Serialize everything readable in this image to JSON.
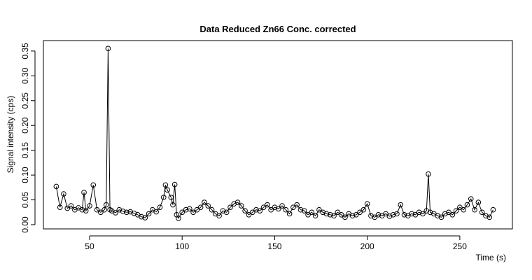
{
  "chart_data": {
    "type": "scatter",
    "title": "Data Reduced Zn66 Conc. corrected",
    "x_label": "Time (s)",
    "y_label": "Signal intensity (cps)",
    "connect": true,
    "color": "#000000",
    "xlim": [
      25.05,
      278.4
    ],
    "ylim": [
      -0.0085,
      0.371
    ],
    "xticks": [
      50,
      100,
      150,
      200,
      250
    ],
    "yticks": [
      {
        "value": 0,
        "label": "0.00"
      },
      0.05,
      {
        "value": 0.1,
        "label": "0.10"
      },
      0.15,
      {
        "value": 0.2,
        "label": "0.20"
      },
      0.25,
      {
        "value": 0.3,
        "label": "0.30"
      },
      0.35
    ],
    "x": [
      32,
      34,
      36,
      38,
      40,
      42,
      44,
      46,
      47,
      48,
      50,
      52,
      54,
      56,
      58,
      59,
      60,
      61,
      62,
      64,
      66,
      68,
      70,
      72,
      74,
      76,
      78,
      80,
      82,
      84,
      86,
      88,
      90,
      91,
      92,
      94,
      95,
      96,
      97,
      98,
      100,
      102,
      104,
      106,
      108,
      110,
      112,
      114,
      116,
      118,
      120,
      122,
      124,
      126,
      128,
      130,
      132,
      134,
      136,
      138,
      140,
      142,
      144,
      146,
      148,
      150,
      152,
      154,
      156,
      158,
      160,
      162,
      164,
      166,
      168,
      170,
      172,
      174,
      176,
      178,
      180,
      182,
      184,
      186,
      188,
      190,
      192,
      194,
      196,
      198,
      200,
      202,
      204,
      206,
      208,
      210,
      212,
      214,
      216,
      218,
      220,
      222,
      224,
      226,
      228,
      230,
      232,
      233,
      234,
      236,
      238,
      240,
      242,
      244,
      246,
      248,
      250,
      252,
      254,
      256,
      258,
      260,
      262,
      264,
      266,
      268
    ],
    "values": [
      0.077,
      0.035,
      0.062,
      0.033,
      0.038,
      0.03,
      0.034,
      0.03,
      0.065,
      0.028,
      0.038,
      0.08,
      0.03,
      0.025,
      0.03,
      0.04,
      0.355,
      0.03,
      0.028,
      0.024,
      0.03,
      0.027,
      0.025,
      0.026,
      0.023,
      0.02,
      0.016,
      0.014,
      0.022,
      0.03,
      0.026,
      0.035,
      0.055,
      0.08,
      0.07,
      0.055,
      0.04,
      0.081,
      0.02,
      0.013,
      0.025,
      0.03,
      0.032,
      0.025,
      0.03,
      0.035,
      0.045,
      0.038,
      0.03,
      0.022,
      0.018,
      0.028,
      0.025,
      0.035,
      0.042,
      0.045,
      0.038,
      0.028,
      0.02,
      0.025,
      0.03,
      0.028,
      0.035,
      0.04,
      0.03,
      0.035,
      0.032,
      0.038,
      0.03,
      0.022,
      0.035,
      0.04,
      0.03,
      0.028,
      0.02,
      0.025,
      0.018,
      0.03,
      0.025,
      0.022,
      0.02,
      0.018,
      0.025,
      0.02,
      0.015,
      0.022,
      0.018,
      0.02,
      0.025,
      0.03,
      0.042,
      0.018,
      0.015,
      0.02,
      0.018,
      0.022,
      0.017,
      0.02,
      0.022,
      0.04,
      0.02,
      0.018,
      0.022,
      0.02,
      0.025,
      0.022,
      0.028,
      0.102,
      0.025,
      0.022,
      0.018,
      0.015,
      0.022,
      0.025,
      0.02,
      0.028,
      0.035,
      0.03,
      0.04,
      0.052,
      0.03,
      0.045,
      0.025,
      0.018,
      0.015,
      0.03
    ]
  }
}
